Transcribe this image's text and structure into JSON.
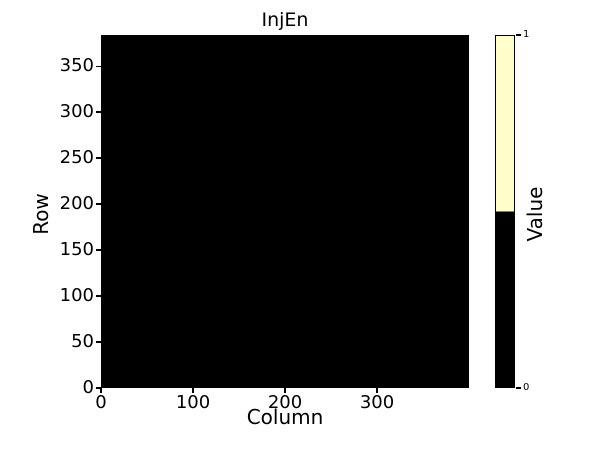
{
  "chart_data": {
    "type": "heatmap",
    "title": "InjEn",
    "xlabel": "Column",
    "ylabel": "Row",
    "xlim": [
      0,
      400
    ],
    "ylim": [
      0,
      384
    ],
    "xticks": [
      0,
      100,
      200,
      300
    ],
    "yticks": [
      0,
      50,
      100,
      150,
      200,
      250,
      300,
      350
    ],
    "grid": false,
    "matrix": {
      "columns": 400,
      "rows": 384,
      "uniform_value": 0,
      "description": "entire pixel map is value 0, rendered solid black"
    },
    "colormap": {
      "value_0_color": "#000000",
      "value_1_color": "#ffffcc"
    },
    "colorbar": {
      "label": "Value",
      "ticks": [
        "0",
        "1"
      ],
      "tick_values": [
        0,
        1
      ],
      "position": "right"
    },
    "text_color": "#000000",
    "background_color": "#ffffff"
  }
}
